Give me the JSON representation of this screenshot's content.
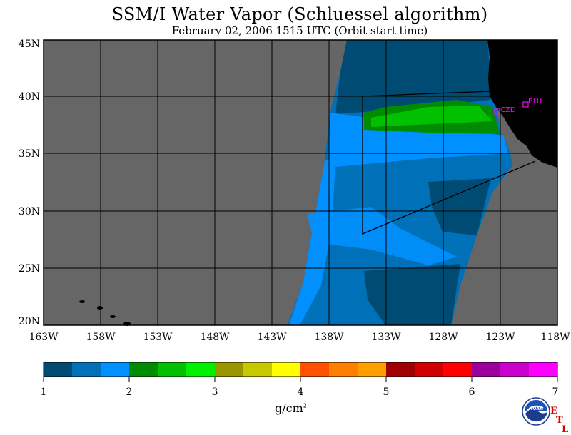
{
  "title": "SSM/I Water Vapor (Schluessel algorithm)",
  "subtitle": "February 02, 2006  1515 UTC  (Orbit start time)",
  "map": {
    "lat_labels": [
      "45N",
      "40N",
      "35N",
      "30N",
      "25N",
      "20N"
    ],
    "lon_labels": [
      "163W",
      "158W",
      "153W",
      "148W",
      "143W",
      "138W",
      "133W",
      "128W",
      "123W",
      "118W"
    ],
    "stations": [
      {
        "label": "CZD"
      },
      {
        "label": "BLU"
      }
    ],
    "colors": {
      "background": "#666666",
      "land": "#000000",
      "grid": "#000000",
      "station": "#ff00ff"
    }
  },
  "colorbar": {
    "units_base": "g/cm",
    "units_exp": "2",
    "tick_labels": [
      "1",
      "2",
      "3",
      "4",
      "5",
      "6",
      "7"
    ],
    "colors": [
      "#004b73",
      "#0070b8",
      "#0090ff",
      "#008c00",
      "#00c000",
      "#00f000",
      "#9a9600",
      "#c8c800",
      "#ffff00",
      "#ff5000",
      "#ff8000",
      "#ffa000",
      "#a00000",
      "#d00000",
      "#ff0000",
      "#9c009c",
      "#cc00cc",
      "#ff00ff"
    ]
  },
  "logo": {
    "text": "NOAA",
    "etl_letters": [
      "E",
      "T",
      "L"
    ]
  }
}
